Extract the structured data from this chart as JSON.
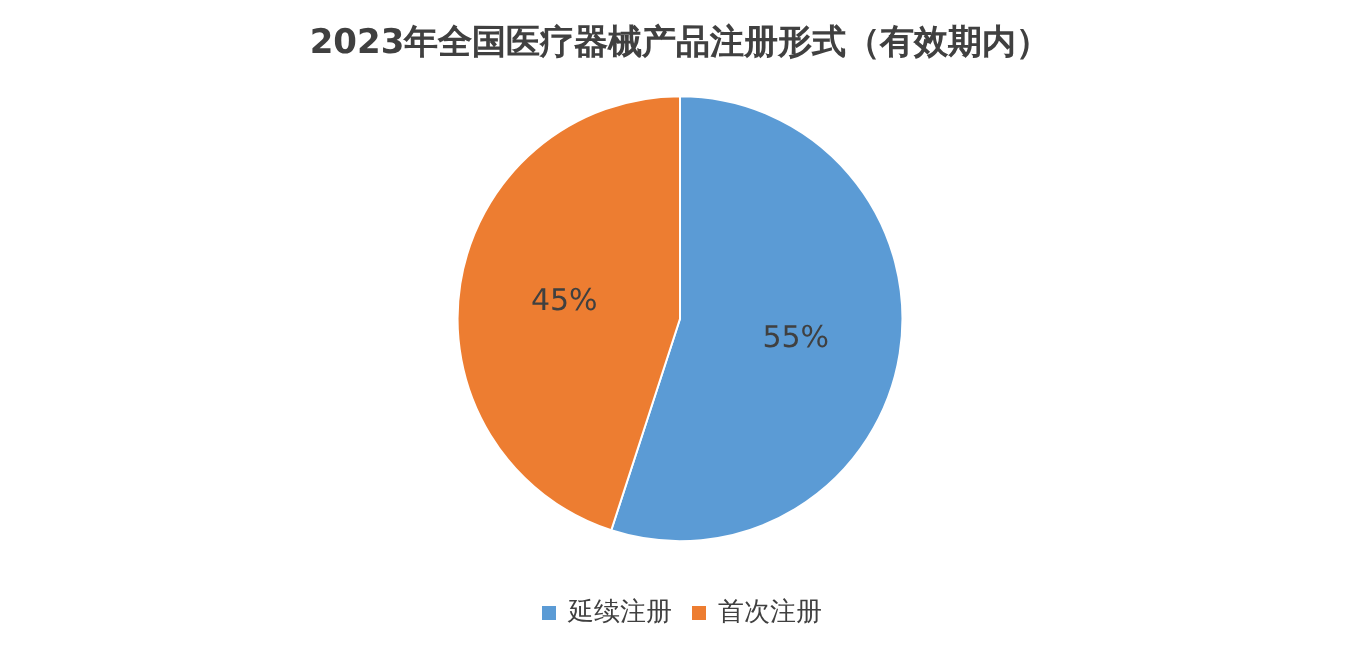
{
  "chart_data": {
    "type": "pie",
    "title": "2023年全国医疗器械产品注册形式（有效期内）",
    "categories": [
      "延续注册",
      "首次注册"
    ],
    "values": [
      55,
      45
    ],
    "colors": [
      "#5b9bd5",
      "#ed7d31"
    ],
    "value_labels": [
      "55%",
      "45%"
    ],
    "legend": "bottom"
  }
}
